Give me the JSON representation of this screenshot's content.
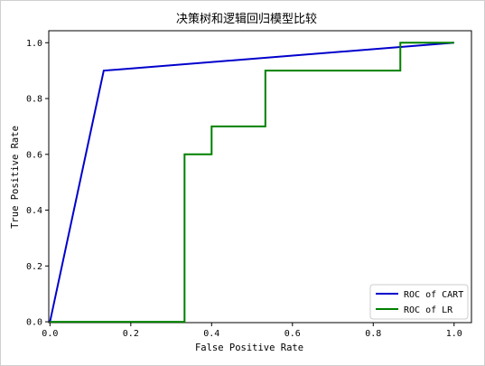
{
  "chart_data": {
    "type": "line",
    "title": "决策树和逻辑回归模型比较",
    "xlabel": "False Positive Rate",
    "ylabel": "True Positive Rate",
    "xlim": [
      0,
      1.04
    ],
    "ylim": [
      0,
      1.04
    ],
    "xticks": [
      "0.0",
      "0.2",
      "0.4",
      "0.6",
      "0.8",
      "1.0"
    ],
    "yticks": [
      "0.0",
      "0.2",
      "0.4",
      "0.6",
      "0.8",
      "1.0"
    ],
    "grid": false,
    "legend_position": "bottom-right",
    "series": [
      {
        "name": "ROC of CART",
        "color": "#0000cc",
        "x": [
          0.0,
          0.133,
          1.0
        ],
        "y": [
          0.0,
          0.9,
          1.0
        ]
      },
      {
        "name": "ROC of LR",
        "color": "#008000",
        "x": [
          0.0,
          0.0,
          0.333,
          0.333,
          0.4,
          0.4,
          0.533,
          0.533,
          0.867,
          0.867,
          1.0
        ],
        "y": [
          0.0,
          0.0,
          0.0,
          0.6,
          0.6,
          0.7,
          0.7,
          0.9,
          0.9,
          1.0,
          1.0
        ]
      }
    ]
  }
}
